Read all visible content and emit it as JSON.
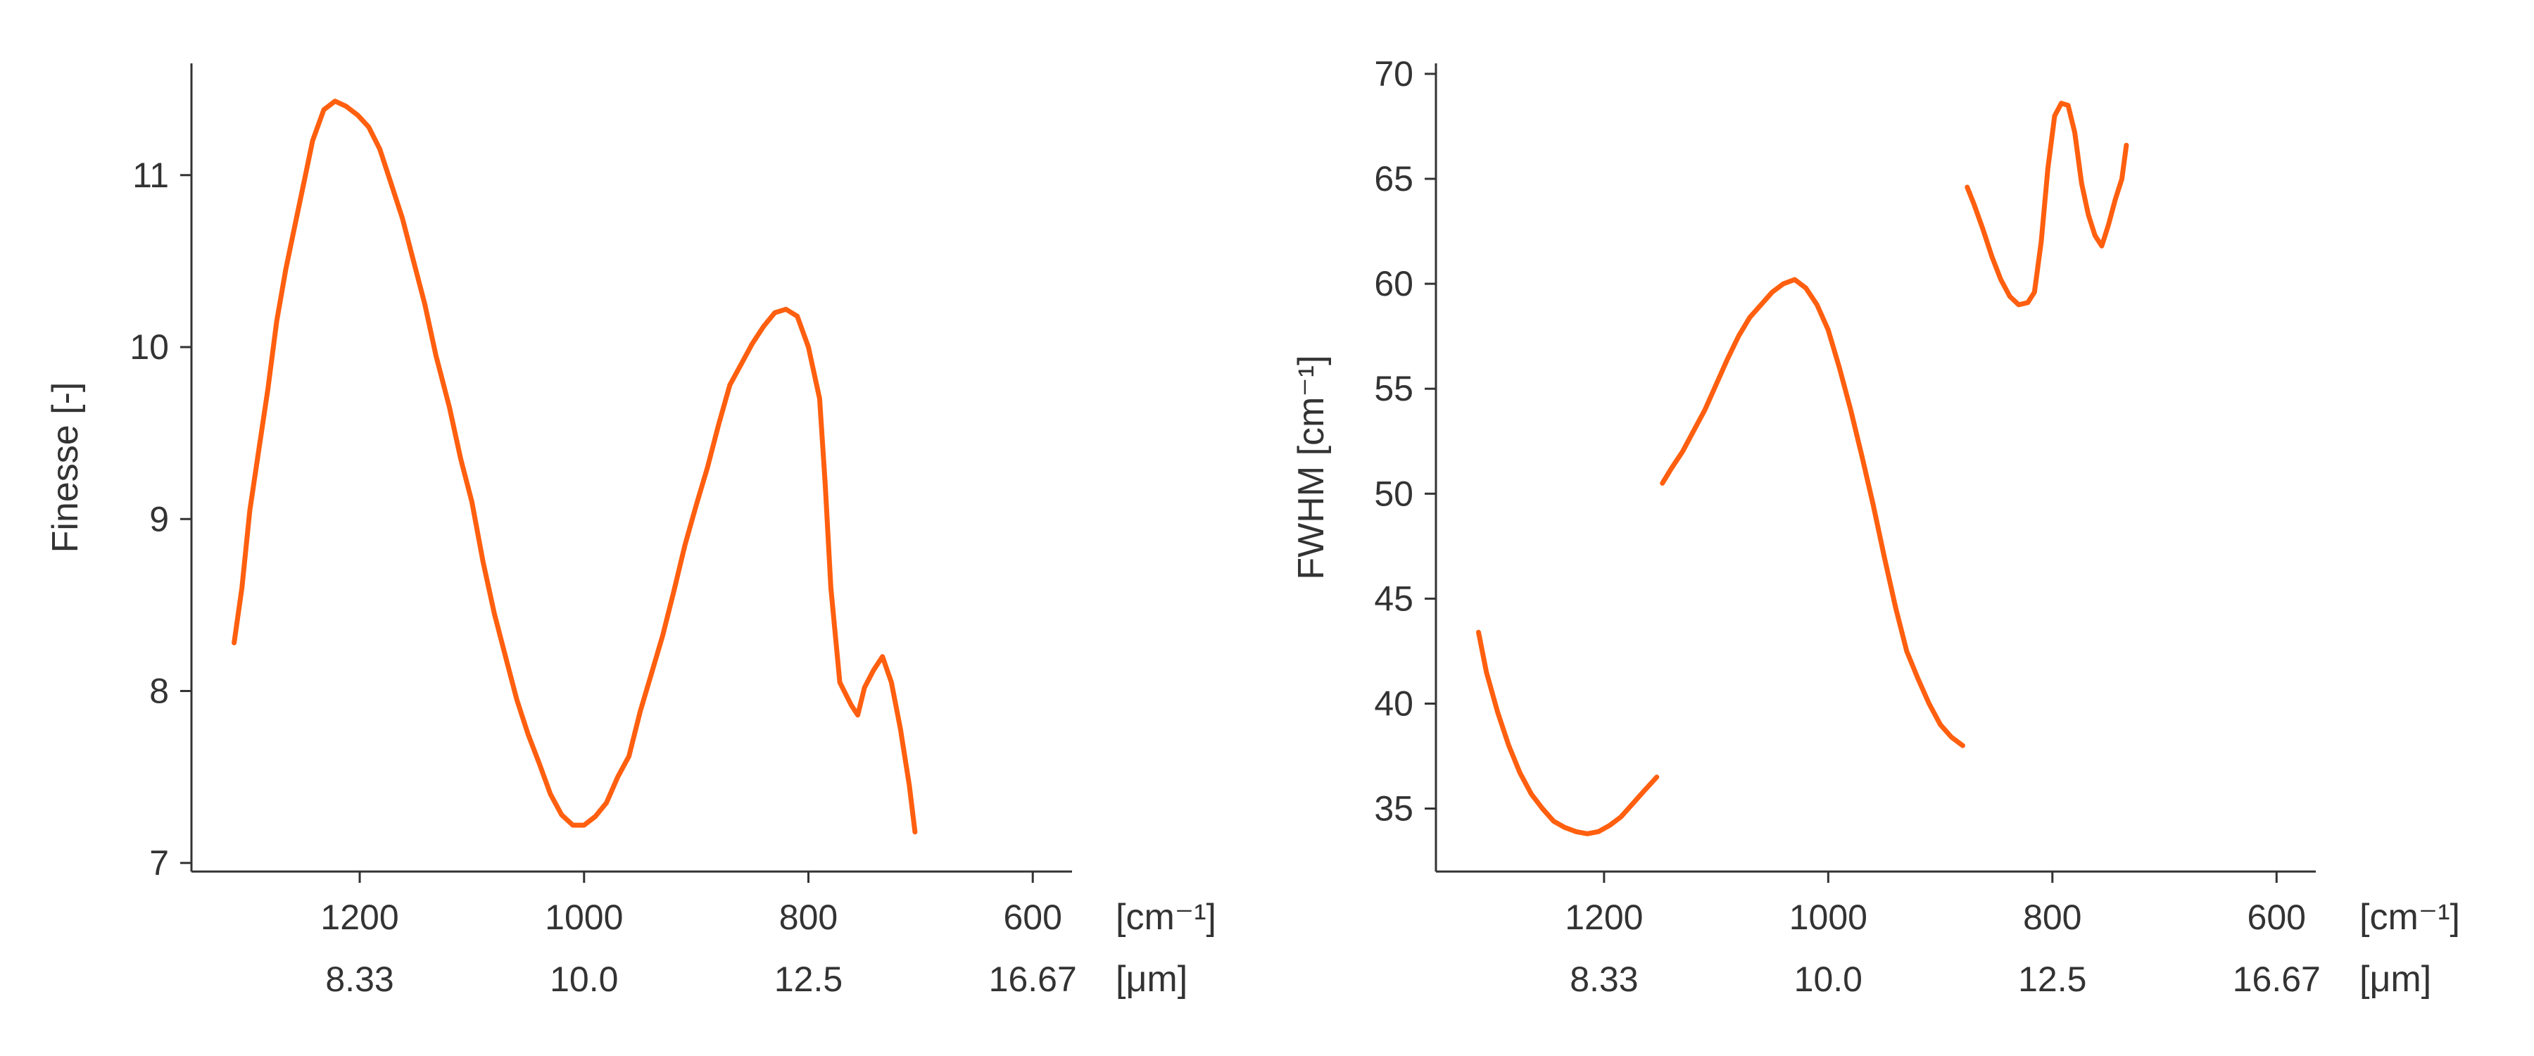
{
  "colors": {
    "series": "#ff5f0f",
    "axis": "#333333",
    "background": "#ffffff"
  },
  "chart_data": [
    {
      "type": "line",
      "title": "",
      "ylabel": "Finesse [-]",
      "xlabel": "",
      "x_unit_primary": "[cm⁻¹]",
      "x_unit_secondary": "[μm]",
      "xlim": [
        1350,
        565
      ],
      "ylim": [
        6.95,
        11.65
      ],
      "x_ticks": [
        1200,
        1000,
        800,
        600
      ],
      "x_tick_labels_primary": [
        "1200",
        "1000",
        "800",
        "600"
      ],
      "x_tick_labels_secondary": [
        "8.33",
        "10.0",
        "12.5",
        "16.67"
      ],
      "y_ticks": [
        7,
        8,
        9,
        10,
        11
      ],
      "y_tick_labels": [
        "7",
        "8",
        "9",
        "10",
        "11"
      ],
      "grid": false,
      "series": [
        {
          "segments": [
            [
              [
                1312,
                8.28
              ],
              [
                1305,
                8.6
              ],
              [
                1298,
                9.05
              ],
              [
                1290,
                9.4
              ],
              [
                1282,
                9.75
              ],
              [
                1274,
                10.15
              ],
              [
                1266,
                10.45
              ],
              [
                1258,
                10.7
              ],
              [
                1250,
                10.95
              ],
              [
                1242,
                11.2
              ],
              [
                1232,
                11.38
              ],
              [
                1222,
                11.43
              ],
              [
                1212,
                11.4
              ],
              [
                1202,
                11.35
              ],
              [
                1192,
                11.28
              ],
              [
                1182,
                11.15
              ],
              [
                1172,
                10.95
              ],
              [
                1162,
                10.75
              ],
              [
                1152,
                10.5
              ],
              [
                1142,
                10.25
              ],
              [
                1132,
                9.95
              ],
              [
                1120,
                9.65
              ],
              [
                1110,
                9.35
              ],
              [
                1100,
                9.1
              ],
              [
                1090,
                8.75
              ],
              [
                1080,
                8.45
              ],
              [
                1070,
                8.2
              ],
              [
                1060,
                7.95
              ],
              [
                1050,
                7.75
              ],
              [
                1040,
                7.58
              ],
              [
                1030,
                7.4
              ],
              [
                1020,
                7.28
              ],
              [
                1010,
                7.22
              ],
              [
                1000,
                7.22
              ],
              [
                990,
                7.27
              ],
              [
                980,
                7.35
              ],
              [
                970,
                7.5
              ],
              [
                960,
                7.62
              ],
              [
                950,
                7.88
              ],
              [
                940,
                8.1
              ],
              [
                930,
                8.32
              ],
              [
                920,
                8.58
              ],
              [
                910,
                8.85
              ],
              [
                900,
                9.08
              ],
              [
                890,
                9.3
              ],
              [
                880,
                9.55
              ],
              [
                870,
                9.78
              ],
              [
                860,
                9.9
              ],
              [
                850,
                10.02
              ],
              [
                840,
                10.12
              ],
              [
                830,
                10.2
              ],
              [
                820,
                10.22
              ],
              [
                810,
                10.18
              ],
              [
                800,
                10.0
              ],
              [
                790,
                9.7
              ],
              [
                785,
                9.2
              ],
              [
                780,
                8.6
              ],
              [
                772,
                8.05
              ],
              [
                762,
                7.92
              ],
              [
                756,
                7.86
              ],
              [
                750,
                8.02
              ],
              [
                742,
                8.12
              ],
              [
                734,
                8.2
              ],
              [
                726,
                8.05
              ],
              [
                718,
                7.78
              ],
              [
                710,
                7.45
              ],
              [
                705,
                7.18
              ]
            ]
          ]
        }
      ]
    },
    {
      "type": "line",
      "title": "",
      "ylabel": "FWHM [cm⁻¹]",
      "xlabel": "",
      "x_unit_primary": "[cm⁻¹]",
      "x_unit_secondary": "[μm]",
      "xlim": [
        1350,
        565
      ],
      "ylim": [
        32,
        70.5
      ],
      "x_ticks": [
        1200,
        1000,
        800,
        600
      ],
      "x_tick_labels_primary": [
        "1200",
        "1000",
        "800",
        "600"
      ],
      "x_tick_labels_secondary": [
        "8.33",
        "10.0",
        "12.5",
        "16.67"
      ],
      "y_ticks": [
        35,
        40,
        45,
        50,
        55,
        60,
        65,
        70
      ],
      "y_tick_labels": [
        "35",
        "40",
        "45",
        "50",
        "55",
        "60",
        "65",
        "70"
      ],
      "grid": false,
      "series": [
        {
          "segments": [
            [
              [
                1312,
                43.4
              ],
              [
                1305,
                41.5
              ],
              [
                1295,
                39.6
              ],
              [
                1285,
                38.0
              ],
              [
                1275,
                36.7
              ],
              [
                1265,
                35.7
              ],
              [
                1255,
                35.0
              ],
              [
                1245,
                34.4
              ],
              [
                1235,
                34.1
              ],
              [
                1225,
                33.9
              ],
              [
                1215,
                33.8
              ],
              [
                1205,
                33.9
              ],
              [
                1195,
                34.2
              ],
              [
                1185,
                34.6
              ],
              [
                1175,
                35.2
              ],
              [
                1165,
                35.8
              ],
              [
                1153,
                36.5
              ]
            ],
            [
              [
                1148,
                50.5
              ],
              [
                1140,
                51.2
              ],
              [
                1130,
                52.0
              ],
              [
                1120,
                53.0
              ],
              [
                1110,
                54.0
              ],
              [
                1100,
                55.2
              ],
              [
                1090,
                56.4
              ],
              [
                1080,
                57.5
              ],
              [
                1070,
                58.4
              ],
              [
                1060,
                59.0
              ],
              [
                1050,
                59.6
              ],
              [
                1040,
                60.0
              ],
              [
                1030,
                60.2
              ],
              [
                1020,
                59.8
              ],
              [
                1010,
                59.0
              ],
              [
                1000,
                57.8
              ],
              [
                990,
                56.0
              ],
              [
                980,
                54.0
              ],
              [
                970,
                51.8
              ],
              [
                960,
                49.5
              ],
              [
                950,
                47.0
              ],
              [
                940,
                44.6
              ],
              [
                930,
                42.5
              ],
              [
                920,
                41.2
              ],
              [
                910,
                40.0
              ],
              [
                900,
                39.0
              ],
              [
                890,
                38.4
              ],
              [
                880,
                38.0
              ]
            ],
            [
              [
                876,
                64.6
              ],
              [
                870,
                63.8
              ],
              [
                862,
                62.6
              ],
              [
                854,
                61.3
              ],
              [
                846,
                60.2
              ],
              [
                838,
                59.4
              ],
              [
                830,
                59.0
              ],
              [
                822,
                59.1
              ],
              [
                816,
                59.6
              ],
              [
                810,
                62.0
              ],
              [
                804,
                65.5
              ],
              [
                798,
                68.0
              ],
              [
                792,
                68.6
              ],
              [
                786,
                68.5
              ],
              [
                780,
                67.2
              ],
              [
                774,
                64.8
              ],
              [
                768,
                63.3
              ],
              [
                762,
                62.3
              ],
              [
                756,
                61.8
              ],
              [
                750,
                62.8
              ],
              [
                744,
                64.0
              ],
              [
                738,
                65.0
              ],
              [
                734,
                66.6
              ]
            ]
          ]
        }
      ]
    }
  ]
}
